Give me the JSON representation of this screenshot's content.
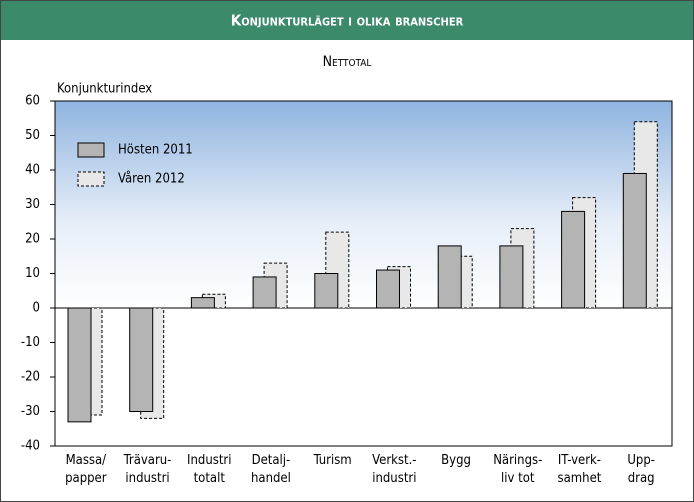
{
  "chart_data": {
    "type": "bar",
    "title": "Konjunkturläget i olika branscher",
    "subtitle": "Nettotal",
    "ylabel": "Konjunkturindex",
    "categories": [
      "Massa/\npapper",
      "Trävaru-\nindustri",
      "Industri\ntotalt",
      "Detalj-\nhandel",
      "Turism",
      "Verkst.-\nindustri",
      "Bygg",
      "Närings-\nliv tot",
      "IT-verk-\nsamhet",
      "Upp-\ndrag"
    ],
    "series": [
      {
        "name": "Hösten 2011",
        "color": "#b4b4b4",
        "values": [
          -33,
          -30,
          3,
          9,
          10,
          11,
          18,
          18,
          28,
          39
        ]
      },
      {
        "name": "Våren 2012",
        "color": "#e8e8e8",
        "values": [
          -31,
          -32,
          4,
          13,
          22,
          12,
          15,
          23,
          32,
          54
        ]
      }
    ],
    "ylim": [
      -40,
      60
    ],
    "yticks": [
      -40,
      -30,
      -20,
      -10,
      0,
      10,
      20,
      30,
      40,
      50,
      60
    ],
    "legend": "upper left"
  }
}
